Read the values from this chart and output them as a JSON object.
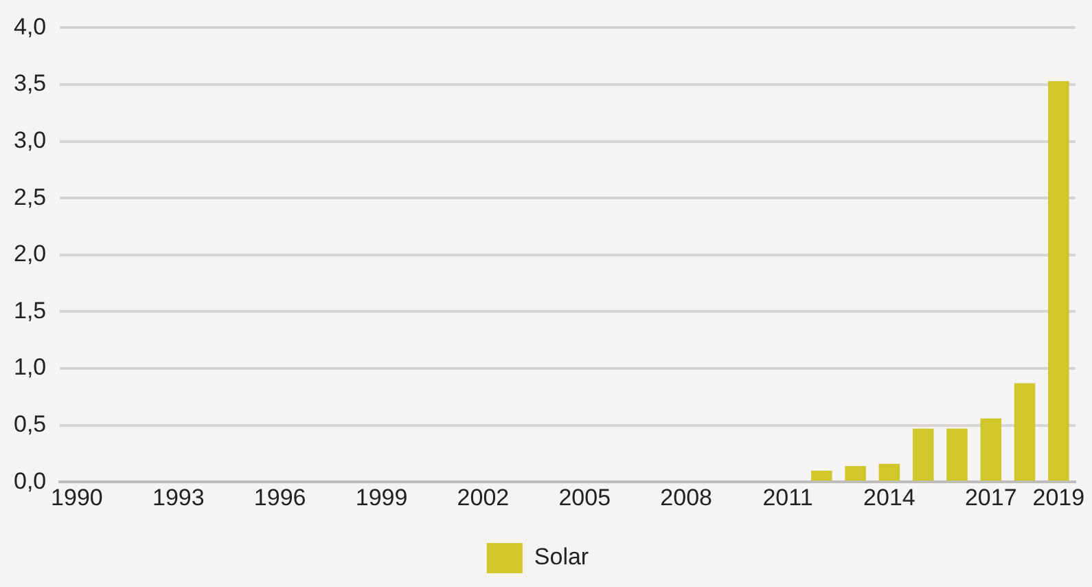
{
  "chart_data": {
    "type": "bar",
    "categories": [
      "1990",
      null,
      null,
      "1993",
      null,
      null,
      "1996",
      null,
      null,
      "1999",
      null,
      null,
      "2002",
      null,
      null,
      "2005",
      null,
      null,
      "2008",
      null,
      null,
      "2011",
      null,
      null,
      "2014",
      null,
      null,
      "2017",
      null,
      "2019"
    ],
    "series": [
      {
        "name": "Solar",
        "color": "#cfc72c",
        "values": [
          0,
          0,
          0,
          0,
          0,
          0,
          0,
          0,
          0,
          0,
          0,
          0,
          0,
          0,
          0,
          0,
          0,
          0,
          0,
          0,
          0,
          0,
          0.1,
          0.14,
          0.16,
          0.47,
          0.47,
          0.56,
          0.87,
          3.53
        ]
      }
    ],
    "ylim": [
      0,
      4
    ],
    "yticks": [
      {
        "value": 0,
        "label": "0,0"
      },
      {
        "value": 0.5,
        "label": "0,5"
      },
      {
        "value": 1,
        "label": "1,0"
      },
      {
        "value": 1.5,
        "label": "1,5"
      },
      {
        "value": 2,
        "label": "2,0"
      },
      {
        "value": 2.5,
        "label": "2,5"
      },
      {
        "value": 3,
        "label": "3,0"
      },
      {
        "value": 3.5,
        "label": "3,5"
      },
      {
        "value": 4,
        "label": "4,0"
      }
    ],
    "grid": "y",
    "legend": "bottom"
  }
}
